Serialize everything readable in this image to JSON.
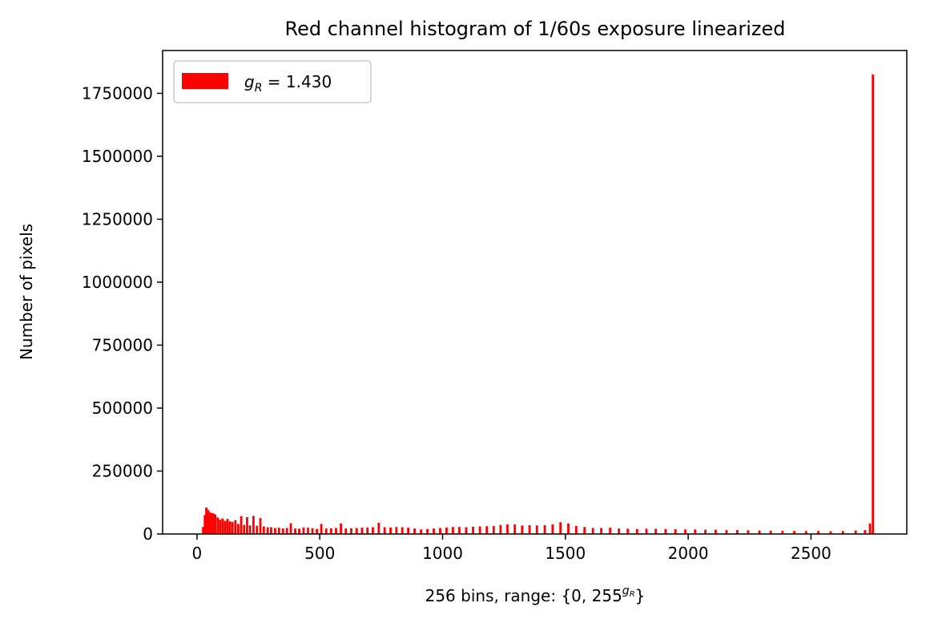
{
  "chart_data": {
    "type": "bar",
    "title": "Red channel histogram of 1/60s exposure linearized",
    "xlabel": "256 bins, range: {0, 255^gR}",
    "xlabel_main": "256 bins, range: {0, 255",
    "xlabel_sup": "g",
    "xlabel_sup_sub": "R",
    "xlabel_end": "}",
    "ylabel": "Number of pixels",
    "xlim": [
      -140,
      2890
    ],
    "ylim": [
      0,
      1920000
    ],
    "x_ticks": [
      0,
      500,
      1000,
      1500,
      2000,
      2500
    ],
    "x_tick_labels": [
      "0",
      "500",
      "1000",
      "1500",
      "2000",
      "2500"
    ],
    "y_ticks": [
      0,
      250000,
      500000,
      750000,
      1000000,
      1250000,
      1500000,
      1750000
    ],
    "y_tick_labels": [
      "0",
      "250000",
      "500000",
      "750000",
      "1000000",
      "1250000",
      "1500000",
      "1750000"
    ],
    "grid": false,
    "legend_position": "top-left",
    "series": [
      {
        "name": "g_R = 1.430",
        "legend_main": "g",
        "legend_sub": "R",
        "legend_eq": " = 1.430",
        "color": "#ff0000",
        "bins": [
          [
            25,
            28000
          ],
          [
            32,
            75000
          ],
          [
            38,
            105000
          ],
          [
            44,
            96000
          ],
          [
            50,
            88000
          ],
          [
            58,
            84000
          ],
          [
            66,
            82000
          ],
          [
            74,
            78000
          ],
          [
            84,
            66000
          ],
          [
            94,
            57000
          ],
          [
            104,
            62000
          ],
          [
            114,
            52000
          ],
          [
            124,
            60000
          ],
          [
            134,
            50000
          ],
          [
            144,
            48000
          ],
          [
            156,
            55000
          ],
          [
            168,
            40000
          ],
          [
            180,
            71000
          ],
          [
            192,
            36000
          ],
          [
            204,
            67000
          ],
          [
            216,
            34000
          ],
          [
            230,
            72000
          ],
          [
            244,
            33000
          ],
          [
            258,
            63000
          ],
          [
            272,
            30000
          ],
          [
            288,
            27000
          ],
          [
            302,
            27000
          ],
          [
            318,
            24000
          ],
          [
            334,
            25000
          ],
          [
            350,
            22000
          ],
          [
            366,
            24000
          ],
          [
            382,
            43000
          ],
          [
            400,
            22000
          ],
          [
            416,
            21000
          ],
          [
            434,
            26000
          ],
          [
            452,
            25000
          ],
          [
            470,
            23000
          ],
          [
            488,
            20000
          ],
          [
            506,
            40000
          ],
          [
            526,
            22000
          ],
          [
            546,
            23000
          ],
          [
            566,
            24000
          ],
          [
            586,
            42000
          ],
          [
            606,
            22000
          ],
          [
            628,
            23000
          ],
          [
            650,
            24000
          ],
          [
            672,
            25000
          ],
          [
            694,
            26000
          ],
          [
            716,
            27000
          ],
          [
            740,
            45000
          ],
          [
            764,
            27000
          ],
          [
            788,
            26000
          ],
          [
            812,
            28000
          ],
          [
            836,
            27000
          ],
          [
            860,
            25000
          ],
          [
            886,
            22000
          ],
          [
            912,
            18000
          ],
          [
            938,
            20000
          ],
          [
            964,
            22000
          ],
          [
            990,
            24000
          ],
          [
            1016,
            26000
          ],
          [
            1042,
            28000
          ],
          [
            1068,
            28000
          ],
          [
            1096,
            27000
          ],
          [
            1124,
            29000
          ],
          [
            1152,
            30000
          ],
          [
            1180,
            31000
          ],
          [
            1208,
            32000
          ],
          [
            1236,
            36000
          ],
          [
            1264,
            38000
          ],
          [
            1294,
            38000
          ],
          [
            1324,
            34000
          ],
          [
            1354,
            35000
          ],
          [
            1384,
            34000
          ],
          [
            1416,
            35000
          ],
          [
            1448,
            38000
          ],
          [
            1480,
            47000
          ],
          [
            1512,
            42000
          ],
          [
            1544,
            32000
          ],
          [
            1578,
            28000
          ],
          [
            1612,
            24000
          ],
          [
            1646,
            24000
          ],
          [
            1682,
            25000
          ],
          [
            1718,
            22000
          ],
          [
            1754,
            21000
          ],
          [
            1792,
            20000
          ],
          [
            1830,
            21000
          ],
          [
            1868,
            21000
          ],
          [
            1908,
            20000
          ],
          [
            1948,
            19000
          ],
          [
            1988,
            18000
          ],
          [
            2028,
            18000
          ],
          [
            2070,
            17000
          ],
          [
            2112,
            17000
          ],
          [
            2156,
            16000
          ],
          [
            2200,
            16000
          ],
          [
            2244,
            15000
          ],
          [
            2290,
            14000
          ],
          [
            2336,
            13000
          ],
          [
            2384,
            13000
          ],
          [
            2432,
            12000
          ],
          [
            2480,
            12000
          ],
          [
            2530,
            12000
          ],
          [
            2580,
            11000
          ],
          [
            2630,
            12000
          ],
          [
            2682,
            14000
          ],
          [
            2720,
            16000
          ],
          [
            2740,
            42000
          ],
          [
            2752,
            1825000
          ]
        ]
      }
    ]
  }
}
